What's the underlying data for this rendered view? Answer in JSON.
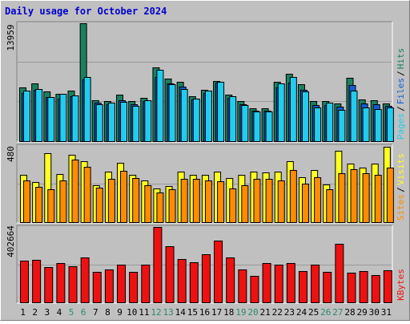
{
  "title": "Daily usage for October 2024",
  "colors": {
    "background": "#c0c0c0",
    "border_light": "#ffffff",
    "border_dark": "#808080",
    "title": "#0000cc",
    "hits": "#1a8060",
    "files": "#0f5ed6",
    "pages": "#22ccee",
    "visits": "#ffff22",
    "sites": "#ff8c00",
    "kbytes": "#ee1111",
    "weekend_label": "#2a8a70",
    "day_label": "#000000"
  },
  "chart_data": [
    {
      "type": "bar",
      "name": "hits-files-pages",
      "axis_max_label": "13959",
      "ylim": [
        0,
        13959
      ],
      "legend_text": {
        "pages": "Pages",
        "files": "Files",
        "hits": "Hits",
        "sep": "/"
      },
      "categories": [
        "1",
        "2",
        "3",
        "4",
        "5",
        "6",
        "7",
        "8",
        "9",
        "10",
        "11",
        "12",
        "13",
        "14",
        "15",
        "16",
        "17",
        "18",
        "19",
        "20",
        "21",
        "22",
        "23",
        "24",
        "25",
        "26",
        "27",
        "28",
        "29",
        "30",
        "31"
      ],
      "weekend": [
        5,
        6,
        12,
        13,
        19,
        20,
        26,
        27
      ],
      "series": [
        {
          "name": "Hits",
          "values": [
            6400,
            6900,
            5900,
            5700,
            6050,
            13959,
            4900,
            4800,
            5600,
            4800,
            5150,
            8800,
            7450,
            7050,
            5400,
            6150,
            7200,
            5550,
            4800,
            4000,
            4000,
            7050,
            8000,
            6750,
            4800,
            4800,
            4550,
            7500,
            5000,
            4900,
            4500
          ]
        },
        {
          "name": "Files",
          "values": [
            5800,
            6100,
            5300,
            5100,
            5400,
            7400,
            4600,
            4450,
            4900,
            4400,
            4850,
            7600,
            6850,
            6500,
            5000,
            5800,
            6950,
            5150,
            4450,
            3700,
            3700,
            6400,
            7000,
            6100,
            4350,
            4350,
            4150,
            6650,
            4550,
            4450,
            4200
          ]
        },
        {
          "name": "Pages",
          "values": [
            6000,
            6200,
            5300,
            5700,
            5500,
            7600,
            4400,
            4600,
            4700,
            4200,
            4900,
            8450,
            6750,
            6200,
            5100,
            6000,
            7100,
            5350,
            4300,
            3600,
            3600,
            6850,
            7600,
            5900,
            4100,
            4650,
            3750,
            6000,
            4050,
            3900,
            4100
          ]
        }
      ]
    },
    {
      "type": "bar",
      "name": "visits-sites",
      "axis_max_label": "480",
      "ylim": [
        0,
        480
      ],
      "legend_text": {
        "sites": "Sites",
        "visits": "Visits",
        "sep": "/"
      },
      "categories": [
        "1",
        "2",
        "3",
        "4",
        "5",
        "6",
        "7",
        "8",
        "9",
        "10",
        "11",
        "12",
        "13",
        "14",
        "15",
        "16",
        "17",
        "18",
        "19",
        "20",
        "21",
        "22",
        "23",
        "24",
        "25",
        "26",
        "27",
        "28",
        "29",
        "30",
        "31"
      ],
      "series": [
        {
          "name": "Visits",
          "values": [
            300,
            255,
            435,
            305,
            425,
            385,
            235,
            320,
            375,
            300,
            265,
            215,
            230,
            320,
            300,
            300,
            320,
            280,
            300,
            320,
            315,
            320,
            385,
            285,
            330,
            240,
            450,
            370,
            345,
            370,
            475
          ]
        },
        {
          "name": "Sites",
          "values": [
            265,
            225,
            210,
            265,
            395,
            350,
            220,
            275,
            325,
            280,
            235,
            190,
            210,
            275,
            275,
            265,
            260,
            215,
            235,
            275,
            275,
            265,
            330,
            245,
            285,
            210,
            310,
            335,
            310,
            300,
            345
          ]
        }
      ]
    },
    {
      "type": "bar",
      "name": "kbytes",
      "axis_max_label": "402664",
      "ylim": [
        0,
        402664
      ],
      "legend_text": {
        "kbytes": "KBytes"
      },
      "categories": [
        "1",
        "2",
        "3",
        "4",
        "5",
        "6",
        "7",
        "8",
        "9",
        "10",
        "11",
        "12",
        "13",
        "14",
        "15",
        "16",
        "17",
        "18",
        "19",
        "20",
        "21",
        "22",
        "23",
        "24",
        "25",
        "26",
        "27",
        "28",
        "29",
        "30",
        "31"
      ],
      "series": [
        {
          "name": "KBytes",
          "values": [
            225000,
            230000,
            190000,
            210000,
            195000,
            240000,
            165000,
            180000,
            205000,
            165000,
            205000,
            402664,
            300000,
            235000,
            215000,
            260000,
            330000,
            240000,
            180000,
            145000,
            210000,
            205000,
            210000,
            170000,
            205000,
            165000,
            315000,
            160000,
            170000,
            150000,
            175000
          ]
        }
      ]
    }
  ]
}
